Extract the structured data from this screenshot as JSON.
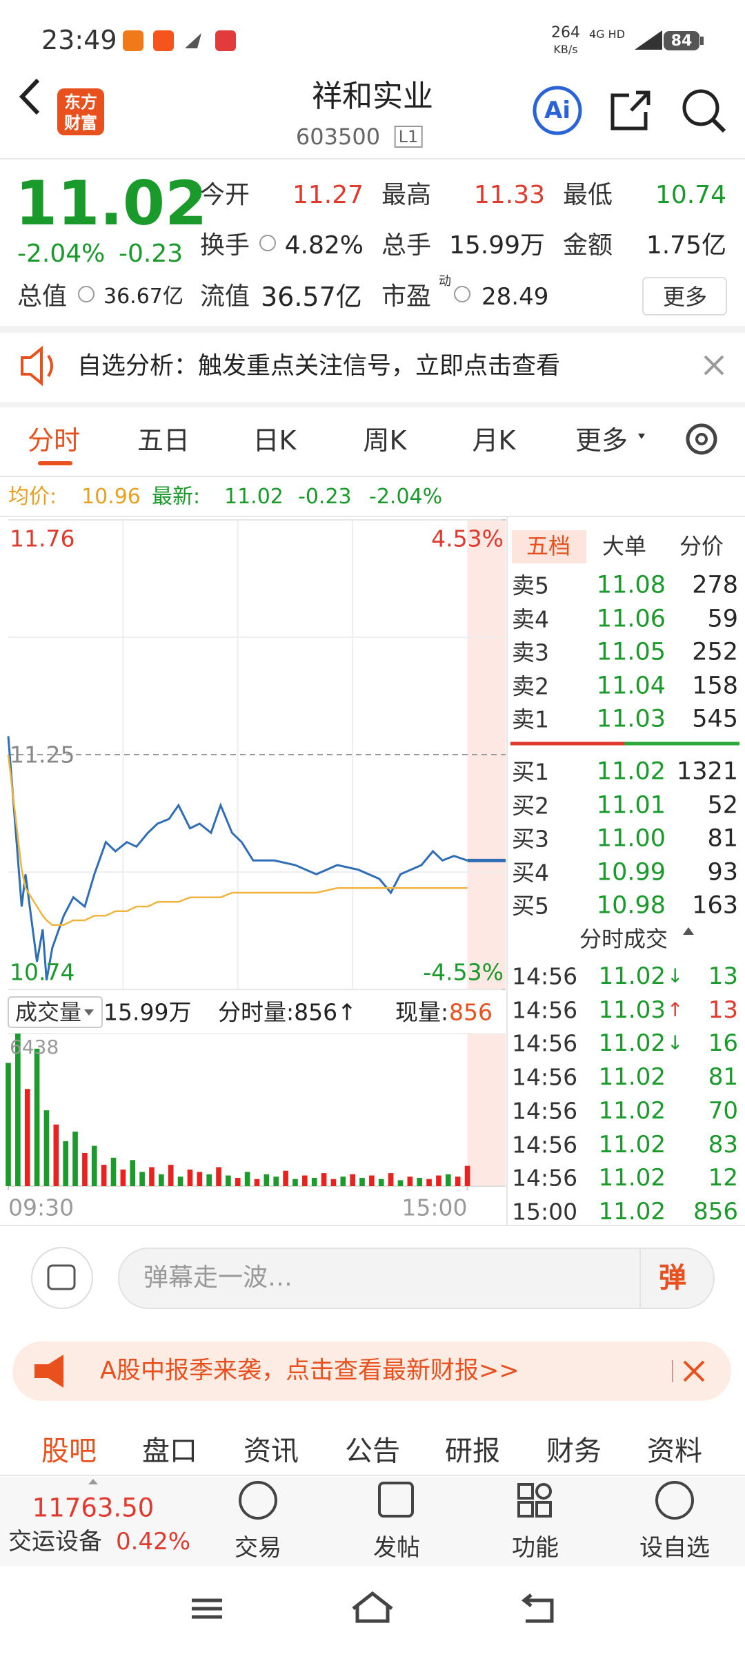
{
  "status_bar": {
    "time": "23:49",
    "net_speed": "264",
    "net_unit": "KB/s",
    "net_type": "4G HD",
    "battery": "84"
  },
  "header": {
    "title": "祥和实业",
    "code": "603500",
    "level": "L1",
    "logo_top": "东方",
    "logo_bottom": "财富",
    "ai": "Ai"
  },
  "quote": {
    "price": "11.02",
    "change_pct": "-2.04%",
    "change": "-0.23",
    "open_label": "今开",
    "open": "11.27",
    "high_label": "最高",
    "high": "11.33",
    "low_label": "最低",
    "low": "10.74",
    "turnover_label": "换手",
    "turnover": "4.82%",
    "volume_label": "总手",
    "volume": "15.99万",
    "amount_label": "金额",
    "amount": "1.75亿",
    "mcap_label": "总值",
    "mcap": "36.67亿",
    "float_label": "流值",
    "float": "36.57亿",
    "pe_label": "市盈",
    "pe_sup": "动",
    "pe": "28.49",
    "more": "更多"
  },
  "notice": {
    "text": "自选分析：触发重点关注信号，立即点击查看"
  },
  "tabs": [
    "分时",
    "五日",
    "日K",
    "周K",
    "月K",
    "更多"
  ],
  "avg_row": {
    "avg_label": "均价:",
    "avg": "10.96",
    "last_label": "最新:",
    "last": "11.02",
    "change": "-0.23",
    "change_pct": "-2.04%"
  },
  "chart_data": [
    {
      "type": "line",
      "x": [
        0,
        7,
        9,
        15,
        18,
        20,
        23,
        29,
        34,
        40,
        45,
        51,
        56,
        62,
        67,
        73,
        78,
        84,
        89,
        95,
        100,
        106,
        111,
        117,
        122,
        128,
        139,
        150,
        161,
        172,
        183,
        194,
        200,
        205,
        216,
        222,
        227,
        233,
        240
      ],
      "series": [
        {
          "color": "#2f6db5",
          "values": [
            11.29,
            10.92,
            10.99,
            10.8,
            10.87,
            10.76,
            10.83,
            10.9,
            10.94,
            10.92,
            10.99,
            11.06,
            11.04,
            11.06,
            11.05,
            11.08,
            11.1,
            11.11,
            11.14,
            11.09,
            11.1,
            11.08,
            11.14,
            11.08,
            11.06,
            11.02,
            11.02,
            11.01,
            10.99,
            11.01,
            11.0,
            10.98,
            10.95,
            10.99,
            11.01,
            11.04,
            11.02,
            11.03,
            11.02
          ]
        },
        {
          "color": "#f0b43c",
          "values": [
            11.25,
            11.0,
            10.96,
            10.92,
            10.9,
            10.89,
            10.88,
            10.88,
            10.89,
            10.89,
            10.9,
            10.9,
            10.91,
            10.91,
            10.92,
            10.92,
            10.93,
            10.93,
            10.93,
            10.94,
            10.94,
            10.94,
            10.94,
            10.95,
            10.95,
            10.95,
            10.95,
            10.95,
            10.95,
            10.96,
            10.96,
            10.96,
            10.96,
            10.96,
            10.96,
            10.96,
            10.96,
            10.96,
            10.96
          ]
        }
      ],
      "xlim": [
        0,
        260
      ],
      "ylim": [
        10.74,
        11.76
      ],
      "yticks": [
        11.76,
        11.25,
        10.74
      ],
      "y2lim": [
        -4.53,
        4.53
      ],
      "y2ticks": [
        {
          "value": 4.53,
          "label": "4.53%"
        },
        {
          "value": -4.53,
          "label": "-4.53%"
        }
      ]
    },
    {
      "type": "bar",
      "x": [
        0,
        5,
        10,
        15,
        20,
        25,
        30,
        35,
        40,
        45,
        50,
        55,
        60,
        65,
        70,
        75,
        80,
        85,
        90,
        95,
        100,
        105,
        110,
        115,
        120,
        125,
        130,
        135,
        140,
        145,
        150,
        155,
        160,
        165,
        170,
        175,
        180,
        185,
        190,
        195,
        200,
        205,
        210,
        215,
        220,
        225,
        230,
        235,
        240
      ],
      "values": [
        5200,
        6438,
        4100,
        5800,
        3200,
        2600,
        1900,
        2300,
        1400,
        1700,
        900,
        1200,
        700,
        1100,
        600,
        800,
        500,
        900,
        400,
        700,
        600,
        500,
        800,
        450,
        350,
        600,
        300,
        500,
        400,
        650,
        300,
        450,
        350,
        550,
        300,
        400,
        500,
        350,
        450,
        300,
        550,
        250,
        400,
        350,
        300,
        450,
        500,
        400,
        856
      ],
      "colors": [
        "#1d9a2c",
        "#1d9a2c",
        "#e8231f",
        "#1d9a2c",
        "#1d9a2c",
        "#e8231f",
        "#1d9a2c",
        "#1d9a2c",
        "#e8231f",
        "#1d9a2c",
        "#e8231f",
        "#1d9a2c",
        "#e8231f",
        "#1d9a2c",
        "#1d9a2c",
        "#e8231f",
        "#1d9a2c",
        "#e8231f",
        "#1d9a2c",
        "#e8231f",
        "#e8231f",
        "#1d9a2c",
        "#e8231f",
        "#1d9a2c",
        "#e8231f",
        "#1d9a2c",
        "#e8231f",
        "#1d9a2c",
        "#1d9a2c",
        "#e8231f",
        "#1d9a2c",
        "#e8231f",
        "#1d9a2c",
        "#e8231f",
        "#e8231f",
        "#1d9a2c",
        "#e8231f",
        "#1d9a2c",
        "#e8231f",
        "#1d9a2c",
        "#e8231f",
        "#1d9a2c",
        "#e8231f",
        "#1d9a2c",
        "#e8231f",
        "#e8231f",
        "#1d9a2c",
        "#e8231f",
        "#e8231f"
      ],
      "xlim": [
        0,
        260
      ],
      "xticks": [
        {
          "value": 0,
          "label": "09:30"
        },
        {
          "value": 240,
          "label": "15:00"
        }
      ],
      "ylim": [
        0,
        6438
      ],
      "yticks": [
        6438
      ]
    }
  ],
  "volume_header": {
    "label": "成交量",
    "total": "15.99万",
    "minute": "分时量:856↑",
    "current_label": "现量:",
    "current": "856"
  },
  "order_book": {
    "tabs": [
      "五档",
      "大单",
      "分价"
    ],
    "asks": [
      [
        "卖5",
        "11.08",
        "278"
      ],
      [
        "卖4",
        "11.06",
        "59"
      ],
      [
        "卖3",
        "11.05",
        "252"
      ],
      [
        "卖2",
        "11.04",
        "158"
      ],
      [
        "卖1",
        "11.03",
        "545"
      ]
    ],
    "bids": [
      [
        "买1",
        "11.02",
        "1321"
      ],
      [
        "买2",
        "11.01",
        "52"
      ],
      [
        "买3",
        "11.00",
        "81"
      ],
      [
        "买4",
        "10.99",
        "93"
      ],
      [
        "买5",
        "10.98",
        "163"
      ]
    ]
  },
  "trades": {
    "title": "分时成交",
    "rows": [
      {
        "time": "14:56",
        "price": "11.02",
        "dir": "↓",
        "vol": "13"
      },
      {
        "time": "14:56",
        "price": "11.03",
        "dir": "↑",
        "vol": "13"
      },
      {
        "time": "14:56",
        "price": "11.02",
        "dir": "↓",
        "vol": "16"
      },
      {
        "time": "14:56",
        "price": "11.02",
        "vol": "81"
      },
      {
        "time": "14:56",
        "price": "11.02",
        "vol": "70"
      },
      {
        "time": "14:56",
        "price": "11.02",
        "vol": "83"
      },
      {
        "time": "14:56",
        "price": "11.02",
        "vol": "12"
      },
      {
        "time": "15:00",
        "price": "11.02",
        "vol": "856"
      }
    ]
  },
  "comment": {
    "placeholder": "弹幕走一波…",
    "button": "弹"
  },
  "banner": {
    "text": "A股中报季来袭，点击查看最新财报>>"
  },
  "bottom_tabs": [
    "股吧",
    "盘口",
    "资讯",
    "公告",
    "研报",
    "财务",
    "资料"
  ],
  "bottom_bar": {
    "index_value": "11763.50",
    "index_name": "交运设备",
    "index_change": "0.42%",
    "buttons": [
      "交易",
      "发帖",
      "功能",
      "设自选"
    ]
  }
}
